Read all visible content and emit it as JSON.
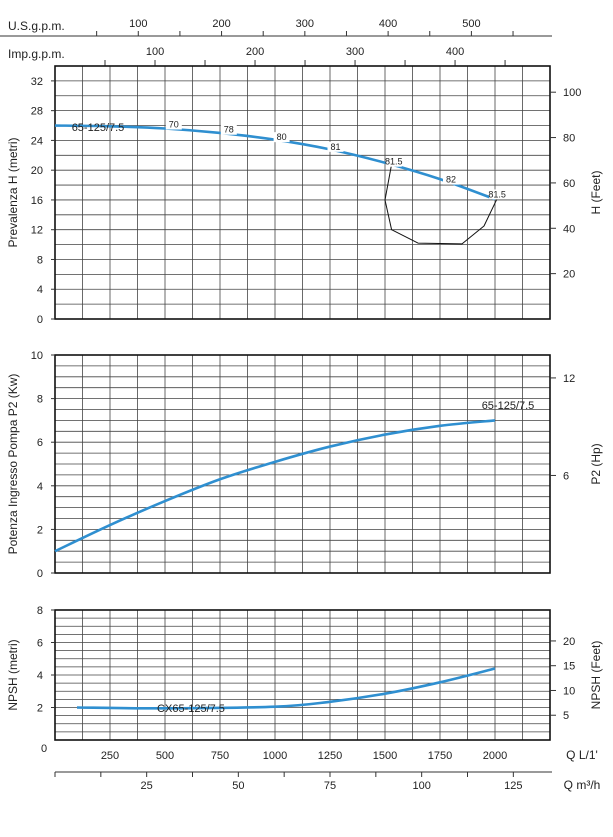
{
  "chart_data": [
    {
      "type": "line",
      "panel": "head",
      "top_axes": [
        {
          "label": "U.S.g.p.m.",
          "ticks": [
            100,
            200,
            300,
            400,
            500
          ]
        },
        {
          "label": "Imp.g.p.m.",
          "ticks": [
            100,
            200,
            300,
            400
          ]
        }
      ],
      "ylabel": "Prevalenza H (metri)",
      "ylim": [
        0,
        34
      ],
      "yticks": [
        0,
        4,
        8,
        12,
        16,
        20,
        24,
        28,
        32
      ],
      "y2label": "H (Feet)",
      "y2ticks": [
        20,
        40,
        60,
        80,
        100
      ],
      "xlim": [
        0,
        2250
      ],
      "grid": true,
      "series": [
        {
          "name": "65-125/7.5",
          "color": "#2f8fd0",
          "x": [
            0,
            250,
            500,
            750,
            1000,
            1250,
            1500,
            1750,
            2000
          ],
          "y": [
            26,
            25.9,
            25.6,
            25.0,
            24.1,
            22.8,
            21.0,
            18.8,
            16.1
          ]
        }
      ],
      "efficiency_labels": [
        {
          "text": "70",
          "x": 540,
          "y": 25.6
        },
        {
          "text": "78",
          "x": 790,
          "y": 24.9
        },
        {
          "text": "80",
          "x": 1030,
          "y": 23.9
        },
        {
          "text": "81",
          "x": 1275,
          "y": 22.6
        },
        {
          "text": "81.5",
          "x": 1540,
          "y": 20.6
        },
        {
          "text": "82",
          "x": 1800,
          "y": 18.2
        },
        {
          "text": "81.5",
          "x": 2010,
          "y": 16.2
        }
      ],
      "efficiency_loop": [
        [
          1530,
          20.8
        ],
        [
          1500,
          16
        ],
        [
          1530,
          12
        ],
        [
          1650,
          10.2
        ],
        [
          1850,
          10.1
        ],
        [
          1950,
          12.5
        ],
        [
          2010,
          16.2
        ]
      ]
    },
    {
      "type": "line",
      "panel": "power",
      "ylabel": "Potenza Ingresso Pompa P2 (Kw)",
      "ylim": [
        0,
        10
      ],
      "yticks": [
        0,
        2,
        4,
        6,
        8,
        10
      ],
      "y2label": "P2 (Hp)",
      "y2ticks": [
        6,
        12
      ],
      "xlim": [
        0,
        2250
      ],
      "grid": true,
      "series": [
        {
          "name": "65-125/7.5",
          "color": "#2f8fd0",
          "x": [
            0,
            250,
            500,
            750,
            1000,
            1250,
            1500,
            1750,
            2000
          ],
          "y": [
            1.0,
            2.2,
            3.3,
            4.3,
            5.1,
            5.8,
            6.35,
            6.75,
            7.0
          ]
        }
      ]
    },
    {
      "type": "line",
      "panel": "npsh",
      "ylabel": "NPSH (metri)",
      "ylim": [
        0,
        8
      ],
      "yticks": [
        2,
        4,
        6,
        8
      ],
      "y2label": "NPSH (Feet)",
      "y2ticks": [
        5,
        10,
        15,
        20
      ],
      "xlabel": "Q L/1'",
      "xticks": [
        0,
        250,
        500,
        750,
        1000,
        1250,
        1500,
        1750,
        2000
      ],
      "x2label": "Q m³/h",
      "x2ticks": [
        25,
        50,
        75,
        100,
        125
      ],
      "xlim": [
        0,
        2250
      ],
      "grid": true,
      "series": [
        {
          "name": "CX65-125/7.5",
          "color": "#2f8fd0",
          "x": [
            100,
            500,
            1000,
            1250,
            1500,
            1750,
            2000
          ],
          "y": [
            2.0,
            1.95,
            2.05,
            2.35,
            2.85,
            3.55,
            4.4
          ]
        }
      ]
    }
  ]
}
